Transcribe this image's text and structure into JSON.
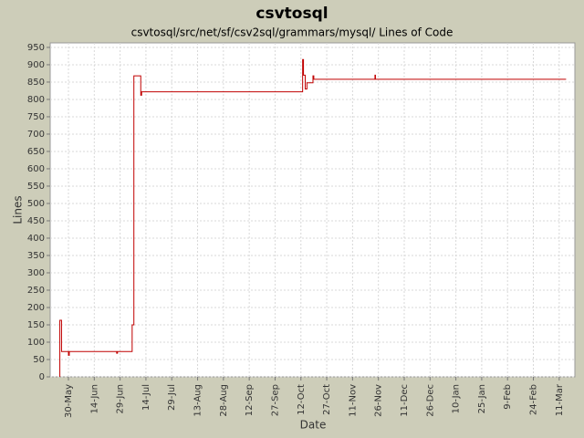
{
  "chart_data": {
    "type": "line",
    "step": true,
    "title": "csvtosql",
    "subtitle": "csvtosql/src/net/sf/csv2sql/grammars/mysql/ Lines of Code",
    "x_label": "Date",
    "y_label": "Lines",
    "x": [
      -5,
      -5,
      -4,
      0,
      0.5,
      28,
      28.5,
      37,
      38,
      42,
      42.5,
      136,
      136.5,
      137.5,
      138.5,
      142,
      142.5,
      178,
      178.3,
      289
    ],
    "series": [
      {
        "name": "Lines of Code",
        "color": "#c00000",
        "values": [
          0,
          163,
          73,
          62,
          73,
          68,
          73,
          150,
          868,
          812,
          822,
          915,
          870,
          830,
          848,
          868,
          858,
          870,
          858,
          858
        ]
      }
    ],
    "xlim": [
      -10.6,
      294.1
    ],
    "xticks": [
      {
        "value": 0,
        "label": "30-May"
      },
      {
        "value": 15,
        "label": "14-Jun"
      },
      {
        "value": 30,
        "label": "29-Jun"
      },
      {
        "value": 45,
        "label": "14-Jul"
      },
      {
        "value": 60,
        "label": "29-Jul"
      },
      {
        "value": 75,
        "label": "13-Aug"
      },
      {
        "value": 90,
        "label": "28-Aug"
      },
      {
        "value": 105,
        "label": "12-Sep"
      },
      {
        "value": 120,
        "label": "27-Sep"
      },
      {
        "value": 135,
        "label": "12-Oct"
      },
      {
        "value": 150,
        "label": "27-Oct"
      },
      {
        "value": 165,
        "label": "11-Nov"
      },
      {
        "value": 180,
        "label": "26-Nov"
      },
      {
        "value": 195,
        "label": "11-Dec"
      },
      {
        "value": 210,
        "label": "26-Dec"
      },
      {
        "value": 225,
        "label": "10-Jan"
      },
      {
        "value": 240,
        "label": "25-Jan"
      },
      {
        "value": 255,
        "label": "9-Feb"
      },
      {
        "value": 270,
        "label": "24-Feb"
      },
      {
        "value": 285,
        "label": "11-Mar"
      }
    ],
    "ylim": [
      0,
      963
    ],
    "yticks": [
      0,
      50,
      100,
      150,
      200,
      250,
      300,
      350,
      400,
      450,
      500,
      550,
      600,
      650,
      700,
      750,
      800,
      850,
      900,
      950
    ],
    "grid": true
  }
}
